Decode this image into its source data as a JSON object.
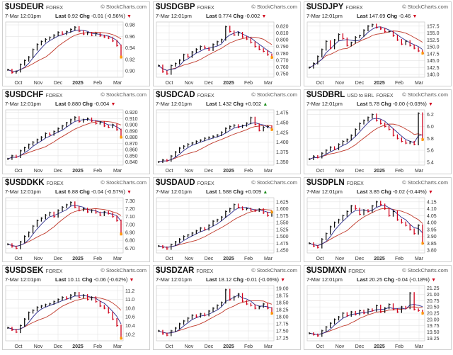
{
  "colors": {
    "up": "#111111",
    "down": "#d0021b",
    "ma_fast": "#2b2b8c",
    "ma_slow": "#c0392b",
    "grid": "#e4e4e4",
    "last_marker": "#ff9900"
  },
  "chart_data": [
    {
      "type": "line",
      "symbol": "$USDEUR",
      "subtitle": "",
      "asset_class": "FOREX",
      "logo_text": "© StockCharts.com",
      "timestamp": "7-Mar 12:01pm",
      "last_label": "Last",
      "last": "0.92",
      "chg_label": "Chg",
      "chg": "-0.01 (-0.56%)",
      "chg_dir": "down",
      "x_ticks": [
        "Oct",
        "Nov",
        "Dec",
        "2025",
        "Feb",
        "Mar"
      ],
      "y_ticks": [
        "0.98",
        "0.96",
        "0.94",
        "0.92",
        "0.90"
      ],
      "ylim": [
        0.889,
        0.985
      ],
      "y_values": [
        0.902,
        0.897,
        0.899,
        0.911,
        0.918,
        0.924,
        0.937,
        0.946,
        0.951,
        0.955,
        0.958,
        0.962,
        0.967,
        0.964,
        0.968,
        0.972,
        0.976,
        0.969,
        0.964,
        0.966,
        0.962,
        0.965,
        0.961,
        0.959,
        0.957,
        0.952,
        0.944,
        0.924
      ]
    },
    {
      "type": "line",
      "symbol": "$USDGBP",
      "subtitle": "",
      "asset_class": "FOREX",
      "logo_text": "© StockCharts.com",
      "timestamp": "7-Mar 12:01pm",
      "last_label": "Last",
      "last": "0.774",
      "chg_label": "Chg",
      "chg": "-0.002",
      "chg_dir": "down",
      "x_ticks": [
        "Oct",
        "Nov",
        "Dec",
        "2025",
        "Feb",
        "Mar"
      ],
      "y_ticks": [
        "0.820",
        "0.810",
        "0.800",
        "0.790",
        "0.780",
        "0.770",
        "0.760",
        "0.750"
      ],
      "ylim": [
        0.745,
        0.826
      ],
      "y_values": [
        0.762,
        0.753,
        0.75,
        0.762,
        0.765,
        0.77,
        0.778,
        0.775,
        0.782,
        0.786,
        0.79,
        0.788,
        0.785,
        0.793,
        0.797,
        0.8,
        0.819,
        0.812,
        0.807,
        0.81,
        0.804,
        0.801,
        0.796,
        0.79,
        0.786,
        0.783,
        0.778,
        0.774
      ]
    },
    {
      "type": "line",
      "symbol": "$USDJPY",
      "subtitle": "",
      "asset_class": "FOREX",
      "logo_text": "© StockCharts.com",
      "timestamp": "7-Mar 12:01pm",
      "last_label": "Last",
      "last": "147.69",
      "chg_label": "Chg",
      "chg": "-0.46",
      "chg_dir": "down",
      "x_ticks": [
        "Oct",
        "Nov",
        "Dec",
        "2025",
        "Feb",
        "Mar"
      ],
      "y_ticks": [
        "157.5",
        "155.0",
        "152.5",
        "150.0",
        "147.5",
        "145.0",
        "142.5",
        "140.0"
      ],
      "ylim": [
        139.0,
        159.0
      ],
      "y_values": [
        142.5,
        144.0,
        146.5,
        149.0,
        152.0,
        149.5,
        152.5,
        154.5,
        153.0,
        150.5,
        151.5,
        153.5,
        154.0,
        156.0,
        157.5,
        158.0,
        157.0,
        156.5,
        155.5,
        155.5,
        154.0,
        152.5,
        151.0,
        152.0,
        150.5,
        149.5,
        148.5,
        147.7
      ]
    },
    {
      "type": "line",
      "symbol": "$USDCHF",
      "subtitle": "",
      "asset_class": "FOREX",
      "logo_text": "© StockCharts.com",
      "timestamp": "7-Mar 12:01pm",
      "last_label": "Last",
      "last": "0.880",
      "chg_label": "Chg",
      "chg": "-0.004",
      "chg_dir": "down",
      "x_ticks": [
        "Oct",
        "Nov",
        "Dec",
        "2025",
        "Feb",
        "Mar"
      ],
      "y_ticks": [
        "0.920",
        "0.910",
        "0.900",
        "0.890",
        "0.880",
        "0.870",
        "0.860",
        "0.850",
        "0.840"
      ],
      "ylim": [
        0.835,
        0.924
      ],
      "y_values": [
        0.845,
        0.85,
        0.848,
        0.858,
        0.863,
        0.868,
        0.872,
        0.876,
        0.88,
        0.886,
        0.884,
        0.889,
        0.894,
        0.898,
        0.903,
        0.908,
        0.912,
        0.905,
        0.908,
        0.91,
        0.906,
        0.902,
        0.904,
        0.898,
        0.896,
        0.9,
        0.892,
        0.88
      ]
    },
    {
      "type": "line",
      "symbol": "$USDCAD",
      "subtitle": "",
      "asset_class": "FOREX",
      "logo_text": "© StockCharts.com",
      "timestamp": "7-Mar 12:01pm",
      "last_label": "Last",
      "last": "1.432",
      "chg_label": "Chg",
      "chg": "+0.002",
      "chg_dir": "up",
      "x_ticks": [
        "Oct",
        "Nov",
        "Dec",
        "2025",
        "Feb",
        "Mar"
      ],
      "y_ticks": [
        "1.475",
        "1.450",
        "1.425",
        "1.400",
        "1.375",
        "1.350"
      ],
      "ylim": [
        1.342,
        1.482
      ],
      "y_values": [
        1.35,
        1.355,
        1.353,
        1.365,
        1.375,
        1.385,
        1.39,
        1.395,
        1.398,
        1.402,
        1.405,
        1.41,
        1.412,
        1.415,
        1.418,
        1.425,
        1.435,
        1.44,
        1.443,
        1.438,
        1.442,
        1.448,
        1.462,
        1.445,
        1.43,
        1.438,
        1.44,
        1.432
      ]
    },
    {
      "type": "line",
      "symbol": "$USDBRL",
      "subtitle": "USD to BRL",
      "asset_class": "FOREX",
      "logo_text": "© StockCharts.com",
      "timestamp": "7-Mar 12:01pm",
      "last_label": "Last",
      "last": "5.78",
      "chg_label": "Chg",
      "chg": "-0.00 (-0.03%)",
      "chg_dir": "down",
      "x_ticks": [
        "Oct",
        "Nov",
        "Dec",
        "2025",
        "Feb",
        "Mar"
      ],
      "y_ticks": [
        "6.2",
        "6.0",
        "5.8",
        "5.6",
        "5.4"
      ],
      "ylim": [
        5.35,
        6.28
      ],
      "y_values": [
        5.45,
        5.5,
        5.48,
        5.55,
        5.6,
        5.65,
        5.62,
        5.7,
        5.75,
        5.78,
        5.85,
        5.95,
        6.05,
        6.1,
        6.15,
        6.2,
        6.1,
        6.05,
        6.0,
        5.95,
        5.85,
        5.8,
        5.75,
        5.72,
        5.74,
        5.7,
        6.22,
        5.78
      ]
    },
    {
      "type": "line",
      "symbol": "$USDDKK",
      "subtitle": "",
      "asset_class": "FOREX",
      "logo_text": "© StockCharts.com",
      "timestamp": "7-Mar 12:01pm",
      "last_label": "Last",
      "last": "6.88",
      "chg_label": "Chg",
      "chg": "-0.04 (-0.57%)",
      "chg_dir": "down",
      "x_ticks": [
        "Oct",
        "Nov",
        "Dec",
        "2025",
        "Feb",
        "Mar"
      ],
      "y_ticks": [
        "7.30",
        "7.20",
        "7.10",
        "7.00",
        "6.90",
        "6.80",
        "6.70"
      ],
      "ylim": [
        6.64,
        7.34
      ],
      "y_values": [
        6.75,
        6.72,
        6.7,
        6.78,
        6.85,
        6.9,
        6.98,
        7.05,
        7.08,
        7.12,
        7.15,
        7.1,
        7.18,
        7.22,
        7.25,
        7.28,
        7.22,
        7.18,
        7.2,
        7.16,
        7.18,
        7.15,
        7.12,
        7.16,
        7.14,
        7.1,
        7.05,
        6.88
      ]
    },
    {
      "type": "line",
      "symbol": "$USDAUD",
      "subtitle": "",
      "asset_class": "FOREX",
      "logo_text": "© StockCharts.com",
      "timestamp": "7-Mar 12:01pm",
      "last_label": "Last",
      "last": "1.588",
      "chg_label": "Chg",
      "chg": "+0.009",
      "chg_dir": "up",
      "x_ticks": [
        "Oct",
        "Nov",
        "Dec",
        "2025",
        "Feb",
        "Mar"
      ],
      "y_ticks": [
        "1.625",
        "1.600",
        "1.575",
        "1.550",
        "1.525",
        "1.500",
        "1.475",
        "1.450"
      ],
      "ylim": [
        1.44,
        1.64
      ],
      "y_values": [
        1.465,
        1.46,
        1.455,
        1.47,
        1.48,
        1.49,
        1.5,
        1.505,
        1.512,
        1.52,
        1.53,
        1.525,
        1.54,
        1.555,
        1.56,
        1.57,
        1.59,
        1.6,
        1.615,
        1.605,
        1.598,
        1.6,
        1.595,
        1.592,
        1.598,
        1.585,
        1.575,
        1.588
      ]
    },
    {
      "type": "line",
      "symbol": "$USDPLN",
      "subtitle": "",
      "asset_class": "FOREX",
      "logo_text": "© StockCharts.com",
      "timestamp": "7-Mar 12:01pm",
      "last_label": "Last",
      "last": "3.85",
      "chg_label": "Chg",
      "chg": "-0.02 (-0.44%)",
      "chg_dir": "down",
      "x_ticks": [
        "Oct",
        "Nov",
        "Dec",
        "2025",
        "Feb",
        "Mar"
      ],
      "y_ticks": [
        "4.15",
        "4.10",
        "4.05",
        "4.00",
        "3.95",
        "3.90",
        "3.85",
        "3.80"
      ],
      "ylim": [
        3.78,
        4.18
      ],
      "y_values": [
        3.85,
        3.83,
        3.82,
        3.88,
        3.92,
        3.97,
        4.0,
        4.02,
        4.05,
        4.08,
        4.12,
        4.1,
        4.06,
        4.09,
        4.08,
        4.12,
        4.15,
        4.13,
        4.1,
        4.05,
        4.08,
        4.02,
        4.0,
        3.98,
        3.95,
        3.92,
        3.98,
        3.85
      ]
    },
    {
      "type": "line",
      "symbol": "$USDSEK",
      "subtitle": "",
      "asset_class": "FOREX",
      "logo_text": "© StockCharts.com",
      "timestamp": "7-Mar 12:01pm",
      "last_label": "Last",
      "last": "10.11",
      "chg_label": "Chg",
      "chg": "-0.06 (-0.62%)",
      "chg_dir": "down",
      "x_ticks": [
        "Oct",
        "Nov",
        "Dec",
        "2025",
        "Feb",
        "Mar"
      ],
      "y_ticks": [
        "11.2",
        "11.0",
        "10.8",
        "10.6",
        "10.4",
        "10.2"
      ],
      "ylim": [
        10.05,
        11.32
      ],
      "y_values": [
        10.35,
        10.3,
        10.25,
        10.4,
        10.55,
        10.7,
        10.75,
        10.82,
        10.85,
        10.88,
        10.9,
        10.95,
        11.0,
        11.05,
        11.02,
        11.1,
        11.15,
        11.05,
        11.1,
        11.0,
        11.05,
        10.95,
        10.85,
        10.8,
        10.7,
        10.55,
        10.4,
        10.11
      ]
    },
    {
      "type": "line",
      "symbol": "$USDZAR",
      "subtitle": "",
      "asset_class": "FOREX",
      "logo_text": "© StockCharts.com",
      "timestamp": "7-Mar 12:01pm",
      "last_label": "Last",
      "last": "18.12",
      "chg_label": "Chg",
      "chg": "-0.01 (-0.06%)",
      "chg_dir": "down",
      "x_ticks": [
        "Oct",
        "Nov",
        "Dec",
        "2025",
        "Feb",
        "Mar"
      ],
      "y_ticks": [
        "19.00",
        "18.75",
        "18.50",
        "18.25",
        "18.00",
        "17.75",
        "17.50",
        "17.25"
      ],
      "ylim": [
        17.15,
        19.1
      ],
      "y_values": [
        17.5,
        17.4,
        17.35,
        17.5,
        17.6,
        17.75,
        17.85,
        17.95,
        18.05,
        18.0,
        18.1,
        18.05,
        18.2,
        18.3,
        18.4,
        18.5,
        18.95,
        18.6,
        18.7,
        18.8,
        18.55,
        18.45,
        18.4,
        18.3,
        18.35,
        18.45,
        18.3,
        18.12
      ]
    },
    {
      "type": "line",
      "symbol": "$USDMXN",
      "subtitle": "",
      "asset_class": "FOREX",
      "logo_text": "© StockCharts.com",
      "timestamp": "7-Mar 12:01pm",
      "last_label": "Last",
      "last": "20.25",
      "chg_label": "Chg",
      "chg": "-0.04 (-0.18%)",
      "chg_dir": "down",
      "x_ticks": [
        "Oct",
        "Nov",
        "Dec",
        "2025",
        "Feb",
        "Mar"
      ],
      "y_ticks": [
        "21.25",
        "21.00",
        "20.75",
        "20.50",
        "20.25",
        "20.00",
        "19.75",
        "19.50",
        "19.25"
      ],
      "ylim": [
        19.15,
        21.35
      ],
      "y_values": [
        19.45,
        19.4,
        19.35,
        19.55,
        19.7,
        19.85,
        20.0,
        20.1,
        20.25,
        20.15,
        20.3,
        20.2,
        20.35,
        20.25,
        20.4,
        20.35,
        20.55,
        20.3,
        20.45,
        20.6,
        20.4,
        20.3,
        20.5,
        20.45,
        21.05,
        20.4,
        20.35,
        20.25
      ]
    }
  ]
}
